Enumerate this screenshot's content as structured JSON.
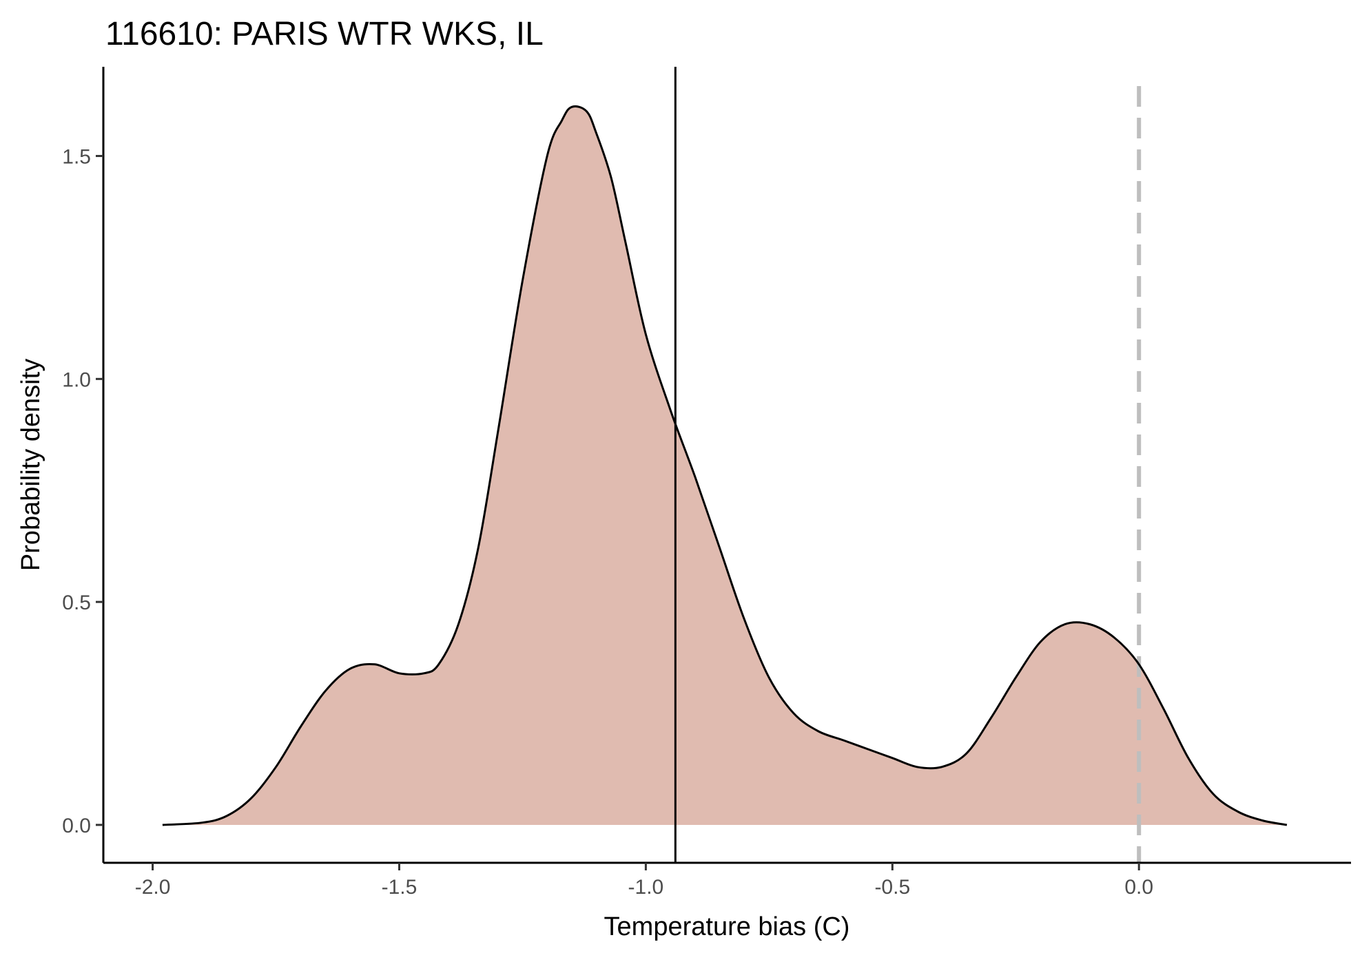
{
  "chart_data": {
    "type": "area",
    "title": "116610: PARIS WTR WKS, IL",
    "xlabel": "Temperature bias (C)",
    "ylabel": "Probability density",
    "xlim": [
      -2.1,
      0.43
    ],
    "ylim": [
      -0.085,
      1.7
    ],
    "x_ticks": [
      -2.0,
      -1.5,
      -1.0,
      -0.5,
      0.0
    ],
    "x_tick_labels": [
      "-2.0",
      "-1.5",
      "-1.0",
      "-0.5",
      "0.0"
    ],
    "y_ticks": [
      0.0,
      0.5,
      1.0,
      1.5
    ],
    "y_tick_labels": [
      "0.0",
      "0.5",
      "1.0",
      "1.5"
    ],
    "grid": false,
    "fill_color": "#e0bbb0",
    "line_color": "#000000",
    "reference_lines": [
      {
        "x": -0.94,
        "style": "solid",
        "color": "#000000"
      },
      {
        "x": 0.0,
        "style": "dashed",
        "color": "#bebebe"
      }
    ],
    "series": [
      {
        "x": [
          -1.98,
          -1.9,
          -1.85,
          -1.8,
          -1.75,
          -1.7,
          -1.65,
          -1.6,
          -1.55,
          -1.5,
          -1.45,
          -1.42,
          -1.38,
          -1.34,
          -1.3,
          -1.25,
          -1.2,
          -1.17,
          -1.15,
          -1.12,
          -1.1,
          -1.07,
          -1.04,
          -1.0,
          -0.95,
          -0.9,
          -0.85,
          -0.8,
          -0.75,
          -0.7,
          -0.65,
          -0.6,
          -0.55,
          -0.5,
          -0.45,
          -0.4,
          -0.35,
          -0.3,
          -0.25,
          -0.2,
          -0.15,
          -0.1,
          -0.05,
          0.0,
          0.05,
          0.1,
          0.15,
          0.2,
          0.25,
          0.3
        ],
        "values": [
          0.0,
          0.005,
          0.02,
          0.06,
          0.13,
          0.22,
          0.3,
          0.35,
          0.36,
          0.34,
          0.34,
          0.36,
          0.45,
          0.62,
          0.88,
          1.22,
          1.5,
          1.58,
          1.61,
          1.6,
          1.55,
          1.45,
          1.3,
          1.1,
          0.93,
          0.78,
          0.62,
          0.46,
          0.33,
          0.25,
          0.21,
          0.19,
          0.17,
          0.15,
          0.13,
          0.13,
          0.16,
          0.24,
          0.33,
          0.41,
          0.45,
          0.45,
          0.42,
          0.36,
          0.26,
          0.15,
          0.07,
          0.03,
          0.01,
          0.0
        ]
      }
    ]
  }
}
